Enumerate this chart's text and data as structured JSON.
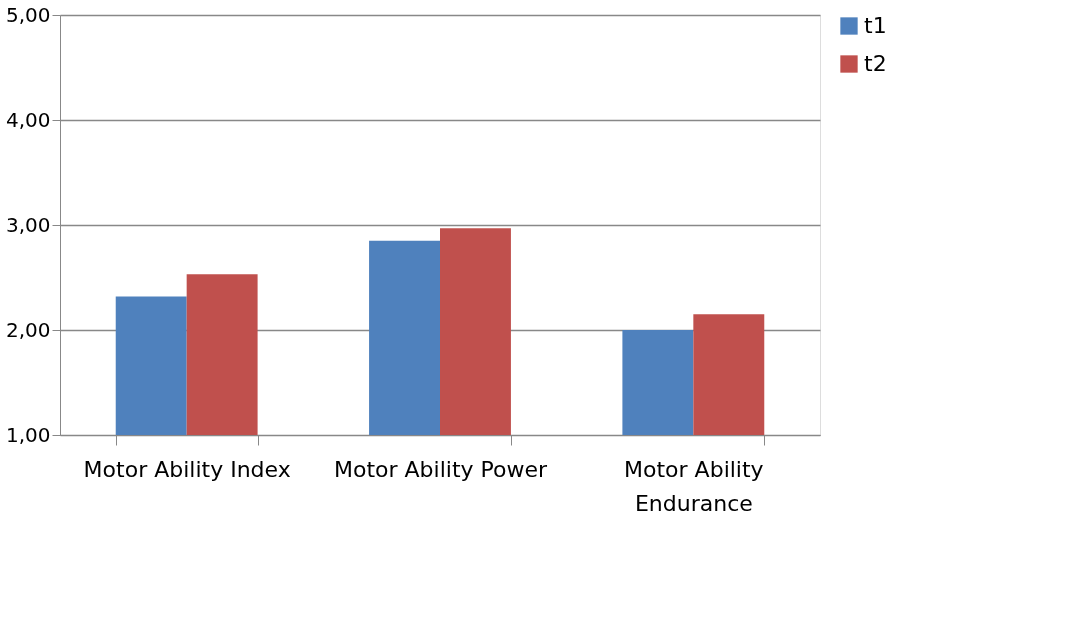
{
  "chart_data": {
    "type": "bar",
    "categories": [
      "Motor Ability Index",
      "Motor Ability Power",
      "Motor Ability Endurance"
    ],
    "series": [
      {
        "name": "t1",
        "color": "#4f81bd",
        "values": [
          2.32,
          2.85,
          2.0
        ]
      },
      {
        "name": "t2",
        "color": "#c0504d",
        "values": [
          2.53,
          2.97,
          2.15
        ]
      }
    ],
    "ylim": [
      1,
      5
    ],
    "yticks": [
      {
        "value": 1,
        "label": "1,00"
      },
      {
        "value": 2,
        "label": "2,00"
      },
      {
        "value": 3,
        "label": "3,00"
      },
      {
        "value": 4,
        "label": "4,00"
      },
      {
        "value": 5,
        "label": "5,00"
      }
    ],
    "grid": "y",
    "legend": "right"
  }
}
